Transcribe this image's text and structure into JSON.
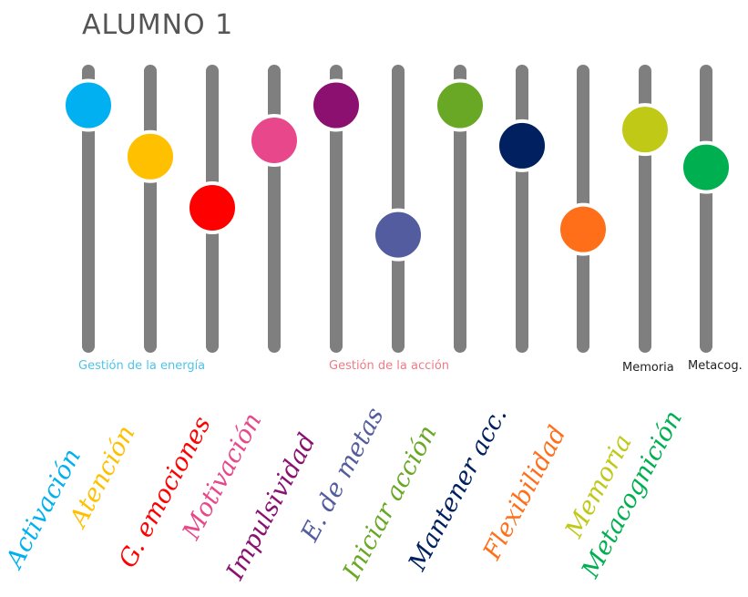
{
  "title": "ALUMNO 1",
  "groups": [
    {
      "label": "Gestión de la energía",
      "color": "#4fc3e8"
    },
    {
      "label": "Gestión de la acción",
      "color": "#ef7b86"
    },
    {
      "label": "Memoria",
      "color": "#222222"
    },
    {
      "label": "Metacog.",
      "color": "#222222"
    }
  ],
  "sliders": [
    {
      "label": "Activación",
      "color": "#00b0f0",
      "level": 0.88
    },
    {
      "label": "Atención",
      "color": "#ffc000",
      "level": 0.69
    },
    {
      "label": "G. emociones",
      "color": "#ff0000",
      "level": 0.5
    },
    {
      "label": "Motivación",
      "color": "#e8478b",
      "level": 0.75
    },
    {
      "label": "Impulsividad",
      "color": "#8b1070",
      "level": 0.88
    },
    {
      "label": "E. de metas",
      "color": "#535c9e",
      "level": 0.4
    },
    {
      "label": "Iniciar acción",
      "color": "#69a824",
      "level": 0.88
    },
    {
      "label": "Mantener acc.",
      "color": "#002060",
      "level": 0.73
    },
    {
      "label": "Flexibilidad",
      "color": "#ff6f1a",
      "level": 0.42
    },
    {
      "label": "Memoria",
      "color": "#bfc916",
      "level": 0.79
    },
    {
      "label": "Metacognición",
      "color": "#00b050",
      "level": 0.65
    }
  ]
}
